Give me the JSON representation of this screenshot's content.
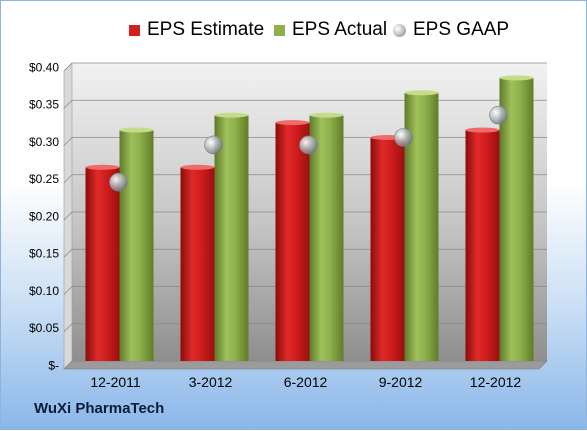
{
  "company": "WuXi PharmaTech",
  "colors": {
    "estimate": "#d41f1f",
    "actual": "#8fb04c",
    "gaap": "#b5b9bf"
  },
  "legend": [
    {
      "label": "EPS Estimate",
      "color": "#d41f1f",
      "shape": "square"
    },
    {
      "label": "EPS Actual",
      "color": "#8fb04c",
      "shape": "square"
    },
    {
      "label": "EPS GAAP",
      "color": "#b5b9bf",
      "shape": "circle"
    }
  ],
  "chart_data": {
    "type": "bar",
    "categories": [
      "12-2011",
      "3-2012",
      "6-2012",
      "9-2012",
      "12-2012"
    ],
    "series": [
      {
        "name": "EPS Estimate",
        "type": "bar",
        "values": [
          0.26,
          0.26,
          0.32,
          0.3,
          0.31
        ]
      },
      {
        "name": "EPS Actual",
        "type": "bar",
        "values": [
          0.31,
          0.33,
          0.33,
          0.36,
          0.38
        ]
      },
      {
        "name": "EPS GAAP",
        "type": "scatter",
        "values": [
          0.24,
          0.29,
          0.29,
          0.3,
          0.33
        ]
      }
    ],
    "ylim": [
      0,
      0.4
    ],
    "yticks": [
      0,
      0.05,
      0.1,
      0.15,
      0.2,
      0.25,
      0.3,
      0.35,
      0.4
    ],
    "ytick_labels": [
      "$-",
      "$0.05",
      "$0.10",
      "$0.15",
      "$0.20",
      "$0.25",
      "$0.30",
      "$0.35",
      "$0.40"
    ],
    "grid": true,
    "legend_position": "top"
  }
}
